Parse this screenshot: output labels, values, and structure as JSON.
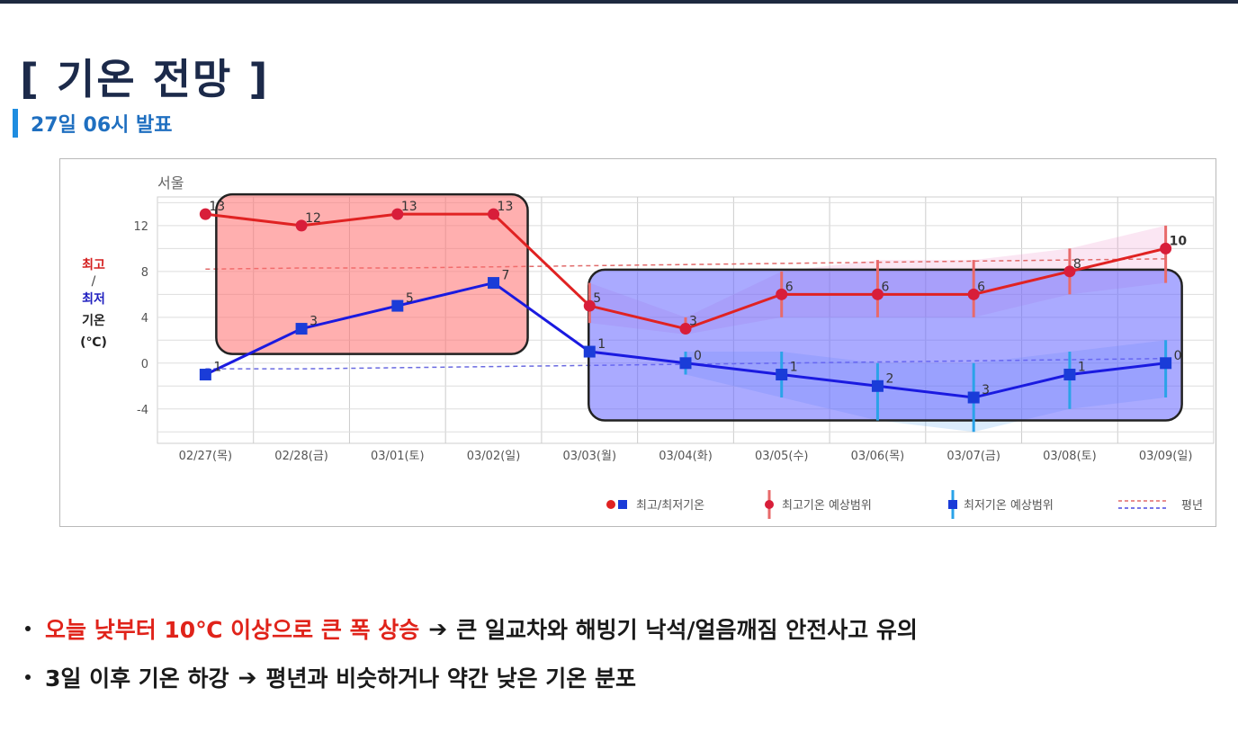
{
  "title": "[ 기온 전망 ]",
  "subtitle": "27일 06시 발표",
  "chart_data": {
    "type": "line",
    "title": "서울",
    "ylabel": {
      "max": "최고",
      "slash": "/",
      "min": "최저",
      "line3": "기온",
      "unit": "(℃)"
    },
    "categories": [
      "02/27(목)",
      "02/28(금)",
      "03/01(토)",
      "03/02(일)",
      "03/03(월)",
      "03/04(화)",
      "03/05(수)",
      "03/06(목)",
      "03/07(금)",
      "03/08(토)",
      "03/09(일)"
    ],
    "yticks": [
      12,
      8,
      4,
      0,
      -4
    ],
    "ylim": [
      -7,
      14.5
    ],
    "grid": true,
    "series": [
      {
        "name": "최고기온",
        "color": "#e02222",
        "marker": "circle",
        "values": [
          13,
          12,
          13,
          13,
          5,
          3,
          6,
          6,
          6,
          8,
          10
        ],
        "range_low": [
          null,
          null,
          null,
          null,
          3.5,
          2.5,
          4,
          4,
          4,
          6,
          7
        ],
        "range_high": [
          null,
          null,
          null,
          null,
          7,
          4,
          8,
          9,
          9,
          10,
          12
        ]
      },
      {
        "name": "최저기온",
        "color": "#1a1ae0",
        "marker": "square",
        "values": [
          -1,
          3,
          5,
          7,
          1,
          0,
          -1,
          -2,
          -3,
          -1,
          0
        ],
        "range_low": [
          null,
          null,
          null,
          null,
          null,
          -1,
          -3,
          -5,
          -6,
          -4,
          -3
        ],
        "range_high": [
          null,
          null,
          null,
          null,
          null,
          1,
          1,
          0,
          0,
          1,
          2
        ]
      }
    ],
    "normal_max": [
      8.2,
      8.3,
      8.3,
      8.4,
      8.5,
      8.6,
      8.7,
      8.8,
      8.9,
      9,
      9.1
    ],
    "normal_min": [
      -0.5,
      -0.5,
      -0.4,
      -0.3,
      -0.2,
      -0.1,
      0,
      0.1,
      0.2,
      0.3,
      0.4
    ],
    "highlight_boxes": [
      {
        "color": "red",
        "from_category": "02/27(목)",
        "to_category": "03/02(일)"
      },
      {
        "color": "blue",
        "from_category": "03/03(월)",
        "to_category": "03/09(일)"
      }
    ],
    "legend": {
      "position": "bottom",
      "items": [
        "최고/최저기온",
        "최고기온 예상범위",
        "최저기온 예상범위",
        "평년"
      ]
    }
  },
  "bullets": [
    {
      "highlight": "오늘 낮부터 10℃ 이상으로 큰 폭 상승",
      "arrow": "➔",
      "rest": "큰 일교차와 해빙기 낙석/얼음깨짐 안전사고 유의"
    },
    {
      "highlight": "",
      "arrow": "➔",
      "lead": "3일 이후 기온 하강",
      "rest": "평년과 비슷하거나 약간 낮은 기온 분포"
    }
  ]
}
